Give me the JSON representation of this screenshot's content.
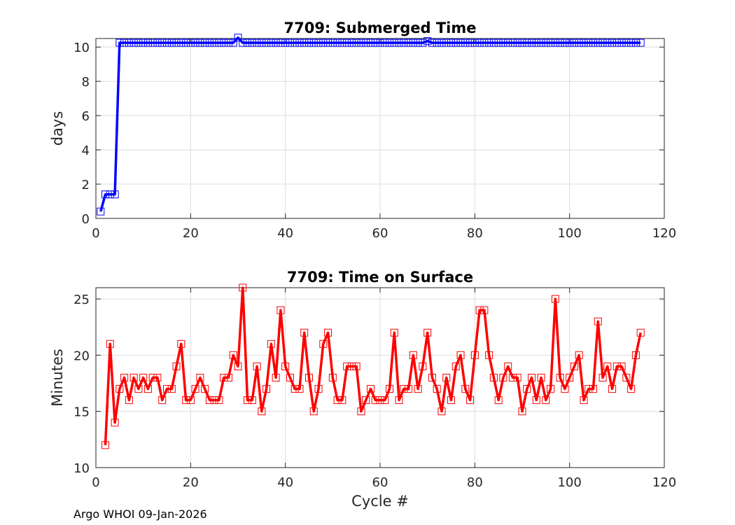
{
  "chart_data": [
    {
      "type": "line",
      "title": "7709: Submerged Time",
      "xlabel": "",
      "ylabel": "days",
      "xlim": [
        0,
        120
      ],
      "ylim": [
        0,
        10.5
      ],
      "xticks": [
        0,
        20,
        40,
        60,
        80,
        100,
        120
      ],
      "yticks": [
        0,
        2,
        4,
        6,
        8,
        10
      ],
      "grid": true,
      "marker": "square",
      "color": "#0000ff",
      "series": [
        {
          "x": [
            1,
            2,
            3,
            4,
            5,
            6,
            7,
            8,
            9,
            10,
            11,
            12,
            13,
            14,
            15,
            16,
            17,
            18,
            19,
            20,
            21,
            22,
            23,
            24,
            25,
            26,
            27,
            28,
            29,
            30,
            31,
            32,
            33,
            34,
            35,
            36,
            37,
            38,
            39,
            40,
            41,
            42,
            43,
            44,
            45,
            46,
            47,
            48,
            49,
            50,
            51,
            52,
            53,
            54,
            55,
            56,
            57,
            58,
            59,
            60,
            61,
            62,
            63,
            64,
            65,
            66,
            67,
            68,
            69,
            70,
            71,
            72,
            73,
            74,
            75,
            76,
            77,
            78,
            79,
            80,
            81,
            82,
            83,
            84,
            85,
            86,
            87,
            88,
            89,
            90,
            91,
            92,
            93,
            94,
            95,
            96,
            97,
            98,
            99,
            100,
            101,
            102,
            103,
            104,
            105,
            106,
            107,
            108,
            109,
            110,
            111,
            112,
            113,
            114,
            115
          ],
          "y": [
            0.4,
            1.4,
            1.4,
            1.4,
            10.25,
            10.25,
            10.25,
            10.25,
            10.25,
            10.25,
            10.25,
            10.25,
            10.25,
            10.25,
            10.25,
            10.25,
            10.25,
            10.25,
            10.25,
            10.25,
            10.25,
            10.25,
            10.25,
            10.25,
            10.25,
            10.25,
            10.25,
            10.25,
            10.25,
            10.55,
            10.25,
            10.25,
            10.25,
            10.25,
            10.25,
            10.25,
            10.25,
            10.25,
            10.25,
            10.25,
            10.25,
            10.25,
            10.25,
            10.25,
            10.25,
            10.25,
            10.25,
            10.25,
            10.25,
            10.25,
            10.25,
            10.25,
            10.25,
            10.25,
            10.25,
            10.25,
            10.25,
            10.25,
            10.25,
            10.25,
            10.25,
            10.25,
            10.25,
            10.25,
            10.25,
            10.25,
            10.25,
            10.25,
            10.25,
            10.35,
            10.25,
            10.25,
            10.25,
            10.25,
            10.25,
            10.25,
            10.25,
            10.25,
            10.25,
            10.25,
            10.25,
            10.25,
            10.25,
            10.25,
            10.25,
            10.25,
            10.25,
            10.25,
            10.25,
            10.25,
            10.25,
            10.25,
            10.25,
            10.25,
            10.25,
            10.25,
            10.25,
            10.25,
            10.25,
            10.25,
            10.25,
            10.25,
            10.25,
            10.25,
            10.25,
            10.25,
            10.25,
            10.25,
            10.25,
            10.25,
            10.25,
            10.25,
            10.25,
            10.25,
            10.25
          ]
        }
      ]
    },
    {
      "type": "line",
      "title": "7709: Time on Surface",
      "xlabel": "Cycle #",
      "ylabel": "Minutes",
      "xlim": [
        0,
        120
      ],
      "ylim": [
        10,
        26
      ],
      "xticks": [
        0,
        20,
        40,
        60,
        80,
        100,
        120
      ],
      "yticks": [
        10,
        15,
        20,
        25
      ],
      "grid": true,
      "marker": "square",
      "color": "#ff0000",
      "series": [
        {
          "x": [
            2,
            3,
            4,
            5,
            6,
            7,
            8,
            9,
            10,
            11,
            12,
            13,
            14,
            15,
            16,
            17,
            18,
            19,
            20,
            21,
            22,
            23,
            24,
            25,
            26,
            27,
            28,
            29,
            30,
            31,
            32,
            33,
            34,
            35,
            36,
            37,
            38,
            39,
            40,
            41,
            42,
            43,
            44,
            45,
            46,
            47,
            48,
            49,
            50,
            51,
            52,
            53,
            54,
            55,
            56,
            57,
            58,
            59,
            60,
            61,
            62,
            63,
            64,
            65,
            66,
            67,
            68,
            69,
            70,
            71,
            72,
            73,
            74,
            75,
            76,
            77,
            78,
            79,
            80,
            81,
            82,
            83,
            84,
            85,
            86,
            87,
            88,
            89,
            90,
            91,
            92,
            93,
            94,
            95,
            96,
            97,
            98,
            99,
            100,
            101,
            102,
            103,
            104,
            105,
            106,
            107,
            108,
            109,
            110,
            111,
            112,
            113,
            114,
            115
          ],
          "y": [
            12,
            21,
            14,
            17,
            18,
            16,
            18,
            17,
            18,
            17,
            18,
            18,
            16,
            17,
            17,
            19,
            21,
            16,
            16,
            17,
            18,
            17,
            16,
            16,
            16,
            18,
            18,
            20,
            19,
            26,
            16,
            16,
            19,
            15,
            17,
            21,
            18,
            24,
            19,
            18,
            17,
            17,
            22,
            18,
            15,
            17,
            21,
            22,
            18,
            16,
            16,
            19,
            19,
            19,
            15,
            16,
            17,
            16,
            16,
            16,
            17,
            22,
            16,
            17,
            17,
            20,
            17,
            19,
            22,
            18,
            17,
            15,
            18,
            16,
            19,
            20,
            17,
            16,
            20,
            24,
            24,
            20,
            18,
            16,
            18,
            19,
            18,
            18,
            15,
            17,
            18,
            16,
            18,
            16,
            17,
            25,
            18,
            17,
            18,
            19,
            20,
            16,
            17,
            17,
            23,
            18,
            19,
            17,
            19,
            19,
            18,
            17,
            20,
            22
          ]
        }
      ]
    }
  ],
  "footer": {
    "text": "Argo WHOI 09-Jan-2026"
  }
}
